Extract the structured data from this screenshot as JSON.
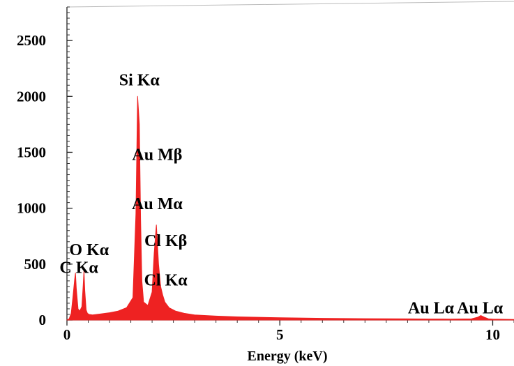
{
  "chart_data": {
    "type": "area",
    "title": "",
    "xlabel": "Energy (keV)",
    "ylabel": "",
    "xlim": [
      0,
      10.5
    ],
    "ylim": [
      0,
      2800
    ],
    "x_ticks": [
      0,
      5,
      10
    ],
    "x_tick_labels": [
      "0",
      "5",
      "10"
    ],
    "y_ticks": [
      0,
      500,
      1000,
      1500,
      2000,
      2500
    ],
    "y_tick_labels": [
      "0",
      "500",
      "1000",
      "1500",
      "2000",
      "2500"
    ],
    "grid": false,
    "legend": "none",
    "spectrum_color": "#ee2222",
    "series": [
      {
        "x": [
          0.0,
          0.05,
          0.1,
          0.14,
          0.18,
          0.2,
          0.22,
          0.26,
          0.3,
          0.35,
          0.38,
          0.4,
          0.42,
          0.45,
          0.48,
          0.52,
          0.6,
          0.8,
          1.0,
          1.2,
          1.4,
          1.55,
          1.62,
          1.66,
          1.7,
          1.73,
          1.76,
          1.8,
          1.9,
          2.0,
          2.05,
          2.1,
          2.12,
          2.15,
          2.2,
          2.25,
          2.3,
          2.4,
          2.55,
          2.75,
          3.0,
          3.5,
          4.0,
          5.0,
          6.0,
          7.0,
          8.0,
          8.5,
          9.0,
          9.5,
          9.65,
          9.72,
          9.8,
          9.9,
          10.0,
          10.5
        ],
        "y": [
          0,
          10,
          60,
          200,
          360,
          420,
          280,
          100,
          80,
          120,
          300,
          440,
          260,
          90,
          60,
          50,
          45,
          55,
          65,
          80,
          110,
          200,
          950,
          2000,
          1750,
          900,
          350,
          160,
          130,
          250,
          600,
          850,
          720,
          500,
          300,
          220,
          160,
          110,
          80,
          60,
          45,
          35,
          28,
          20,
          15,
          12,
          10,
          9,
          8,
          10,
          25,
          40,
          25,
          10,
          8,
          5
        ]
      }
    ],
    "annotations": [
      {
        "text": "C Kα",
        "x": 0.28,
        "y": 420
      },
      {
        "text": "O Kα",
        "x": 0.52,
        "y": 580
      },
      {
        "text": "Si Kα",
        "x": 1.7,
        "y": 2100
      },
      {
        "text": "Au Mβ",
        "x": 2.12,
        "y": 1430
      },
      {
        "text": "Au Mα",
        "x": 2.12,
        "y": 990
      },
      {
        "text": "Cl Kβ",
        "x": 2.32,
        "y": 660
      },
      {
        "text": "Cl Kα",
        "x": 2.32,
        "y": 310
      },
      {
        "text": "Au Lα",
        "x": 8.55,
        "y": 60
      },
      {
        "text": "Au Lα",
        "x": 9.7,
        "y": 60
      }
    ]
  }
}
